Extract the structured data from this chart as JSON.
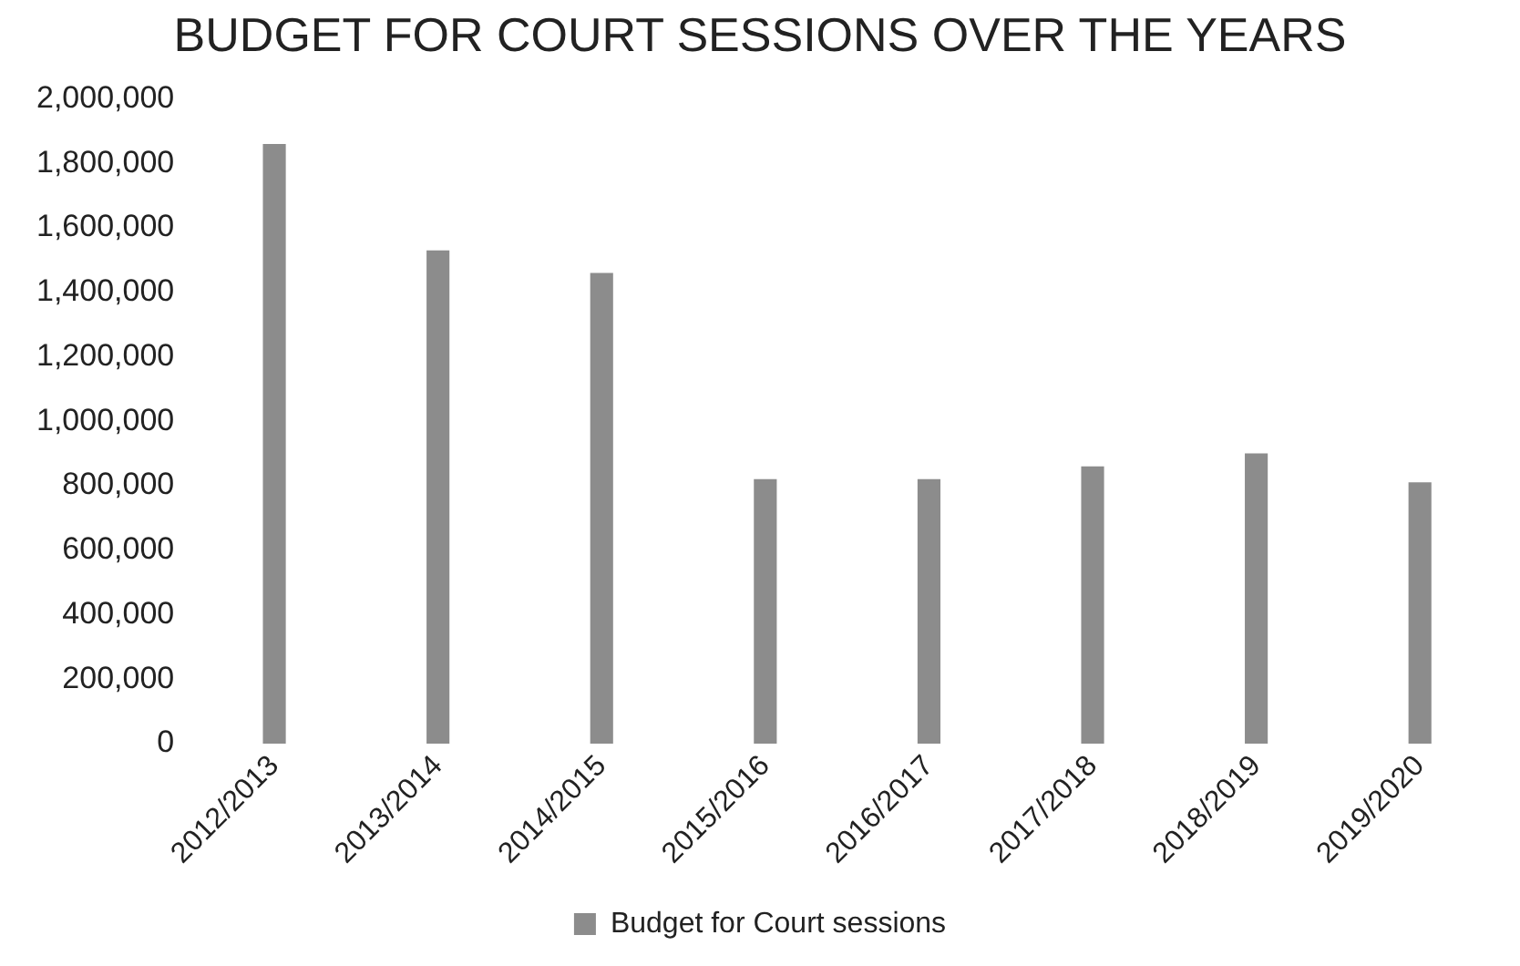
{
  "chart_data": {
    "type": "bar",
    "title": "BUDGET FOR COURT SESSIONS OVER THE YEARS",
    "categories": [
      "2012/2013",
      "2013/2014",
      "2014/2015",
      "2015/2016",
      "2016/2017",
      "2017/2018",
      "2018/2019",
      "2019/2020"
    ],
    "series": [
      {
        "name": "Budget for Court sessions",
        "color": "#8c8c8c",
        "values": [
          1860000,
          1530000,
          1460000,
          820000,
          820000,
          860000,
          900000,
          810000
        ]
      }
    ],
    "ylim": [
      0,
      2000000
    ],
    "yticks": [
      0,
      {
        "value": 200000,
        "label": "200,000"
      },
      {
        "value": 400000,
        "label": "400,000"
      },
      {
        "value": 600000,
        "label": "600,000"
      },
      {
        "value": 800000,
        "label": "800,000"
      },
      {
        "value": 1000000,
        "label": "1,000,000"
      },
      {
        "value": 1200000,
        "label": "1,200,000"
      },
      {
        "value": 1400000,
        "label": "1,400,000"
      },
      {
        "value": 1600000,
        "label": "1,600,000"
      },
      {
        "value": 1800000,
        "label": "1,800,000"
      },
      {
        "value": 2000000,
        "label": "2,000,000"
      }
    ],
    "grid": false,
    "legend": "bottom"
  }
}
